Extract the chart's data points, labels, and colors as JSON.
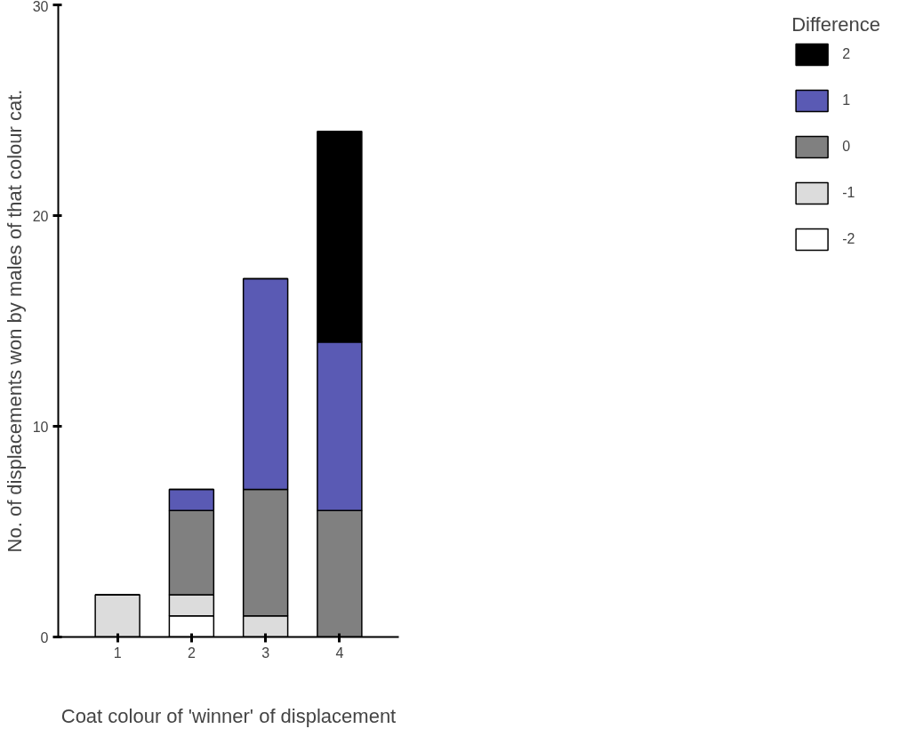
{
  "chart_data": {
    "type": "bar",
    "stacked": true,
    "xlabel": "Coat colour of 'winner' of displacement",
    "ylabel": "No. of displacements won by males of that colour cat.",
    "legend_title": "Difference",
    "categories": [
      "1",
      "2",
      "3",
      "4"
    ],
    "series": [
      {
        "name": "-2",
        "color": "#ffffff",
        "values": [
          0,
          1,
          0,
          0
        ]
      },
      {
        "name": "-1",
        "color": "#dcdcdc",
        "values": [
          2,
          1,
          1,
          0
        ]
      },
      {
        "name": "0",
        "color": "#808080",
        "values": [
          0,
          4,
          6,
          6
        ]
      },
      {
        "name": "1",
        "color": "#5a5ab4",
        "values": [
          0,
          1,
          10,
          8
        ]
      },
      {
        "name": "2",
        "color": "#000000",
        "values": [
          0,
          0,
          0,
          10
        ]
      }
    ],
    "ylim": [
      0,
      30
    ],
    "yticks": [
      0,
      10,
      20,
      30
    ],
    "grid": false,
    "legend": "right"
  }
}
